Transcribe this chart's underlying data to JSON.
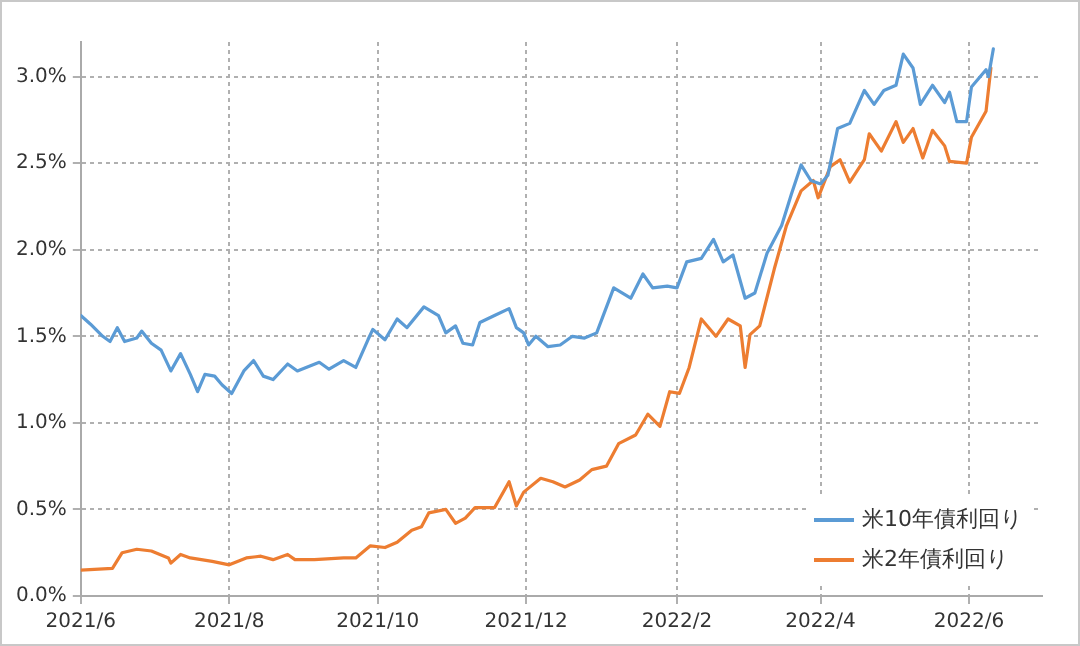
{
  "chart_data": {
    "type": "line",
    "legend": "bottom right",
    "grid": true,
    "marker": "none",
    "line_style": "solid",
    "xlim": [
      "2021-06-01",
      "2022-07-01"
    ],
    "xticks": [
      {
        "value": "2021-06-01",
        "label": "2021/6"
      },
      {
        "value": "2021-08-01",
        "label": "2021/8"
      },
      {
        "value": "2021-10-01",
        "label": "2021/10"
      },
      {
        "value": "2021-12-01",
        "label": "2021/12"
      },
      {
        "value": "2022-02-01",
        "label": "2022/2"
      },
      {
        "value": "2022-04-01",
        "label": "2022/4"
      },
      {
        "value": "2022-06-01",
        "label": "2022/6"
      }
    ],
    "ylim": [
      0,
      3.2
    ],
    "yticks": [
      {
        "value": 0,
        "label": "0.0%"
      },
      {
        "value": 0.5,
        "label": "0.5%"
      },
      {
        "value": 1,
        "label": "1.0%"
      },
      {
        "value": 1.5,
        "label": "1.5%"
      },
      {
        "value": 2,
        "label": "2.0%"
      },
      {
        "value": 2.5,
        "label": "2.5%"
      },
      {
        "value": 3,
        "label": "3.0%"
      }
    ],
    "series": [
      {
        "name": "米10年債利回り",
        "color": "#5b9bd5",
        "x": [
          "2021-06-01",
          "2021-06-05",
          "2021-06-10",
          "2021-06-13",
          "2021-06-16",
          "2021-06-19",
          "2021-06-24",
          "2021-06-26",
          "2021-06-30",
          "2021-07-04",
          "2021-07-08",
          "2021-07-12",
          "2021-07-16",
          "2021-07-19",
          "2021-07-22",
          "2021-07-26",
          "2021-07-29",
          "2021-08-02",
          "2021-08-07",
          "2021-08-11",
          "2021-08-15",
          "2021-08-19",
          "2021-08-25",
          "2021-08-29",
          "2021-09-07",
          "2021-09-11",
          "2021-09-17",
          "2021-09-22",
          "2021-09-27",
          "2021-09-29",
          "2021-10-04",
          "2021-10-09",
          "2021-10-13",
          "2021-10-20",
          "2021-10-26",
          "2021-10-29",
          "2021-11-02",
          "2021-11-05",
          "2021-11-09",
          "2021-11-12",
          "2021-11-18",
          "2021-11-24",
          "2021-11-27",
          "2021-11-30",
          "2021-12-02",
          "2021-12-05",
          "2021-12-10",
          "2021-12-15",
          "2021-12-20",
          "2021-12-25",
          "2021-12-30",
          "2022-01-06",
          "2022-01-13",
          "2022-01-18",
          "2022-01-22",
          "2022-01-28",
          "2022-02-01",
          "2022-02-05",
          "2022-02-11",
          "2022-02-16",
          "2022-02-20",
          "2022-02-24",
          "2022-03-01",
          "2022-03-05",
          "2022-03-10",
          "2022-03-16",
          "2022-03-20",
          "2022-03-24",
          "2022-03-28",
          "2022-04-01",
          "2022-04-04",
          "2022-04-08",
          "2022-04-13",
          "2022-04-19",
          "2022-04-23",
          "2022-04-27",
          "2022-05-02",
          "2022-05-05",
          "2022-05-09",
          "2022-05-12",
          "2022-05-17",
          "2022-05-22",
          "2022-05-24",
          "2022-05-27",
          "2022-05-31",
          "2022-06-02",
          "2022-06-08",
          "2022-06-09",
          "2022-06-11"
        ],
        "values": [
          1.62,
          1.57,
          1.5,
          1.47,
          1.55,
          1.47,
          1.49,
          1.53,
          1.46,
          1.42,
          1.3,
          1.4,
          1.28,
          1.18,
          1.28,
          1.27,
          1.22,
          1.17,
          1.3,
          1.36,
          1.27,
          1.25,
          1.34,
          1.3,
          1.35,
          1.31,
          1.36,
          1.32,
          1.48,
          1.54,
          1.48,
          1.6,
          1.55,
          1.67,
          1.62,
          1.52,
          1.56,
          1.46,
          1.45,
          1.58,
          1.62,
          1.66,
          1.55,
          1.52,
          1.45,
          1.5,
          1.44,
          1.45,
          1.5,
          1.49,
          1.52,
          1.78,
          1.72,
          1.86,
          1.78,
          1.79,
          1.78,
          1.93,
          1.95,
          2.06,
          1.93,
          1.97,
          1.72,
          1.75,
          1.98,
          2.14,
          2.32,
          2.49,
          2.4,
          2.38,
          2.43,
          2.7,
          2.73,
          2.92,
          2.84,
          2.92,
          2.95,
          3.13,
          3.05,
          2.84,
          2.95,
          2.85,
          2.91,
          2.74,
          2.74,
          2.94,
          3.04,
          3.0,
          3.16
        ]
      },
      {
        "name": "米2年債利回り",
        "color": "#ed7d31",
        "x": [
          "2021-06-01",
          "2021-06-14",
          "2021-06-18",
          "2021-06-24",
          "2021-06-30",
          "2021-07-07",
          "2021-07-08",
          "2021-07-12",
          "2021-07-16",
          "2021-07-25",
          "2021-08-01",
          "2021-08-08",
          "2021-08-14",
          "2021-08-19",
          "2021-08-25",
          "2021-08-28",
          "2021-09-05",
          "2021-09-17",
          "2021-09-22",
          "2021-09-28",
          "2021-10-04",
          "2021-10-09",
          "2021-10-15",
          "2021-10-19",
          "2021-10-22",
          "2021-10-29",
          "2021-11-02",
          "2021-11-06",
          "2021-11-10",
          "2021-11-18",
          "2021-11-24",
          "2021-11-27",
          "2021-11-30",
          "2021-12-07",
          "2021-12-12",
          "2021-12-17",
          "2021-12-23",
          "2021-12-28",
          "2022-01-03",
          "2022-01-08",
          "2022-01-15",
          "2022-01-20",
          "2022-01-25",
          "2022-01-29",
          "2022-02-02",
          "2022-02-06",
          "2022-02-11",
          "2022-02-17",
          "2022-02-22",
          "2022-02-27",
          "2022-03-01",
          "2022-03-03",
          "2022-03-07",
          "2022-03-13",
          "2022-03-18",
          "2022-03-24",
          "2022-03-29",
          "2022-03-31",
          "2022-04-05",
          "2022-04-09",
          "2022-04-13",
          "2022-04-19",
          "2022-04-21",
          "2022-04-26",
          "2022-05-02",
          "2022-05-05",
          "2022-05-09",
          "2022-05-13",
          "2022-05-17",
          "2022-05-22",
          "2022-05-24",
          "2022-05-31",
          "2022-06-02",
          "2022-06-08",
          "2022-06-10"
        ],
        "values": [
          0.15,
          0.16,
          0.25,
          0.27,
          0.26,
          0.22,
          0.19,
          0.24,
          0.22,
          0.2,
          0.18,
          0.22,
          0.23,
          0.21,
          0.24,
          0.21,
          0.21,
          0.22,
          0.22,
          0.29,
          0.28,
          0.31,
          0.38,
          0.4,
          0.48,
          0.5,
          0.42,
          0.45,
          0.51,
          0.51,
          0.66,
          0.52,
          0.6,
          0.68,
          0.66,
          0.63,
          0.67,
          0.73,
          0.75,
          0.88,
          0.93,
          1.05,
          0.98,
          1.18,
          1.17,
          1.32,
          1.6,
          1.5,
          1.6,
          1.56,
          1.32,
          1.51,
          1.56,
          1.89,
          2.14,
          2.34,
          2.4,
          2.3,
          2.48,
          2.52,
          2.39,
          2.52,
          2.67,
          2.57,
          2.74,
          2.62,
          2.7,
          2.53,
          2.69,
          2.6,
          2.51,
          2.5,
          2.65,
          2.8,
          3.05
        ]
      }
    ]
  }
}
